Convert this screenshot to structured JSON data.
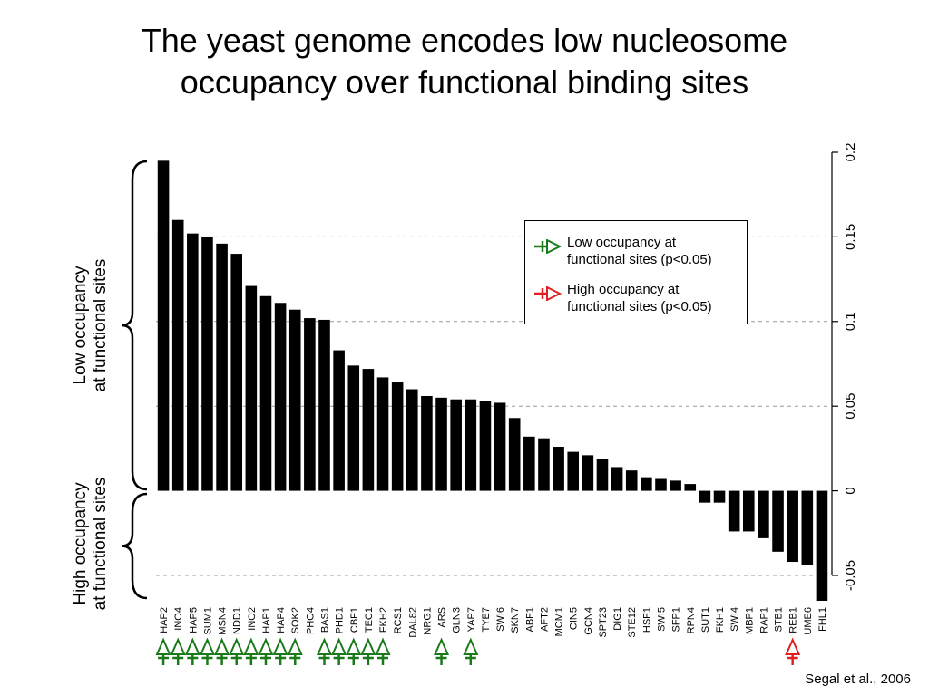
{
  "title": {
    "line1": "The yeast genome encodes low nucleosome",
    "line2": "occupancy over functional binding sites"
  },
  "citation": "Segal et al., 2006",
  "legend": {
    "low": {
      "line1": "Low occupancy at",
      "line2": "functional sites (p<0.05)",
      "color": "#1a7a1a"
    },
    "high": {
      "line1": "High occupancy at",
      "line2": "functional sites (p<0.05)",
      "color": "#e02020"
    }
  },
  "brace_labels": {
    "top": {
      "line1": "Low occupancy",
      "line2": "at functional sites"
    },
    "bottom": {
      "line1": "High occupancy",
      "line2": "at functional sites"
    }
  },
  "chart_data": {
    "type": "bar",
    "categories": [
      "HAP2",
      "INO4",
      "HAP5",
      "SUM1",
      "MSN4",
      "NDD1",
      "INO2",
      "HAP1",
      "HAP4",
      "SOK2",
      "PHO4",
      "BAS1",
      "PHD1",
      "CBF1",
      "TEC1",
      "FKH2",
      "RCS1",
      "DAL82",
      "NRG1",
      "ARS",
      "GLN3",
      "YAP7",
      "TYE7",
      "SWI6",
      "SKN7",
      "ABF1",
      "AFT2",
      "MCM1",
      "CIN5",
      "GCN4",
      "SPT23",
      "DIG1",
      "STE12",
      "HSF1",
      "SWI5",
      "SFP1",
      "RPN4",
      "SUT1",
      "FKH1",
      "SWI4",
      "MBP1",
      "RAP1",
      "STB1",
      "REB1",
      "UME6",
      "FHL1"
    ],
    "values": [
      0.195,
      0.16,
      0.152,
      0.15,
      0.146,
      0.14,
      0.121,
      0.115,
      0.111,
      0.107,
      0.102,
      0.101,
      0.083,
      0.074,
      0.072,
      0.067,
      0.064,
      0.06,
      0.056,
      0.055,
      0.054,
      0.054,
      0.053,
      0.052,
      0.043,
      0.032,
      0.031,
      0.026,
      0.023,
      0.021,
      0.019,
      0.014,
      0.012,
      0.008,
      0.007,
      0.006,
      0.004,
      -0.007,
      -0.007,
      -0.024,
      -0.024,
      -0.028,
      -0.036,
      -0.042,
      -0.044,
      -0.065
    ],
    "markers": [
      {
        "category": "HAP2",
        "type": "low"
      },
      {
        "category": "INO4",
        "type": "low"
      },
      {
        "category": "HAP5",
        "type": "low"
      },
      {
        "category": "SUM1",
        "type": "low"
      },
      {
        "category": "MSN4",
        "type": "low"
      },
      {
        "category": "NDD1",
        "type": "low"
      },
      {
        "category": "INO2",
        "type": "low"
      },
      {
        "category": "HAP1",
        "type": "low"
      },
      {
        "category": "HAP4",
        "type": "low"
      },
      {
        "category": "SOK2",
        "type": "low"
      },
      {
        "category": "BAS1",
        "type": "low"
      },
      {
        "category": "PHD1",
        "type": "low"
      },
      {
        "category": "CBF1",
        "type": "low"
      },
      {
        "category": "TEC1",
        "type": "low"
      },
      {
        "category": "FKH2",
        "type": "low"
      },
      {
        "category": "ARS",
        "type": "low"
      },
      {
        "category": "YAP7",
        "type": "low"
      },
      {
        "category": "REB1",
        "type": "high"
      }
    ],
    "ylim": [
      -0.065,
      0.2
    ],
    "yticks": [
      -0.05,
      0,
      0.05,
      0.1,
      0.15,
      0.2
    ],
    "ytick_labels": [
      "-0.05",
      "0",
      "0.05",
      "0.1",
      "0.15",
      "0.2"
    ],
    "y_axis_side": "right",
    "gridlines": [
      -0.05,
      0.05,
      0.1,
      0.15
    ],
    "bar_color": "#000000",
    "legend_position": "top-right"
  }
}
